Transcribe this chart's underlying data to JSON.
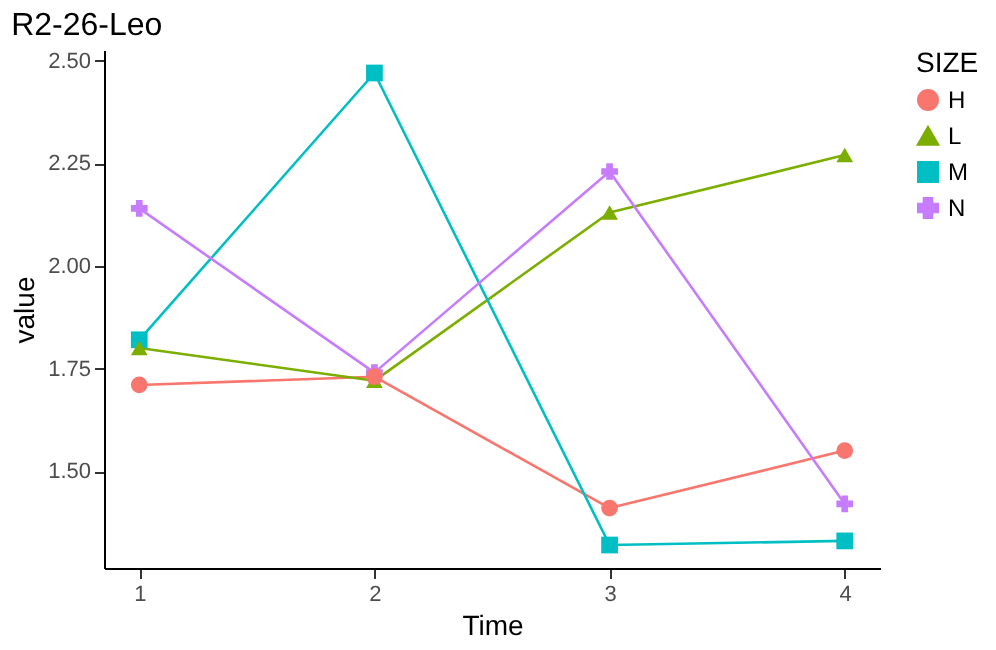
{
  "chart_data": {
    "type": "line",
    "title": "R2-26-Leo",
    "xlabel": "Time",
    "ylabel": "value",
    "legend_title": "SIZE",
    "x": [
      1,
      2,
      3,
      4
    ],
    "series": [
      {
        "name": "H",
        "color": "#f8766d",
        "marker": "circle",
        "values": [
          1.71,
          1.73,
          1.41,
          1.55
        ]
      },
      {
        "name": "L",
        "color": "#7cae00",
        "marker": "triangle",
        "values": [
          1.8,
          1.72,
          2.13,
          2.27
        ]
      },
      {
        "name": "M",
        "color": "#00bfc4",
        "marker": "square",
        "values": [
          1.82,
          2.47,
          1.32,
          1.33
        ]
      },
      {
        "name": "N",
        "color": "#c77cff",
        "marker": "cross",
        "values": [
          2.14,
          1.74,
          2.23,
          1.42
        ]
      }
    ],
    "xlim": [
      0.85,
      4.15
    ],
    "ylim": [
      1.264,
      2.526
    ],
    "xticks": [
      1,
      2,
      3,
      4
    ],
    "yticks": [
      {
        "value": 1.5,
        "label": "1.50"
      },
      1.75,
      {
        "value": 2.0,
        "label": "2.00"
      },
      2.25,
      {
        "value": 2.5,
        "label": "2.50"
      }
    ],
    "grid": false,
    "legend": "right",
    "line_style": "solid"
  }
}
